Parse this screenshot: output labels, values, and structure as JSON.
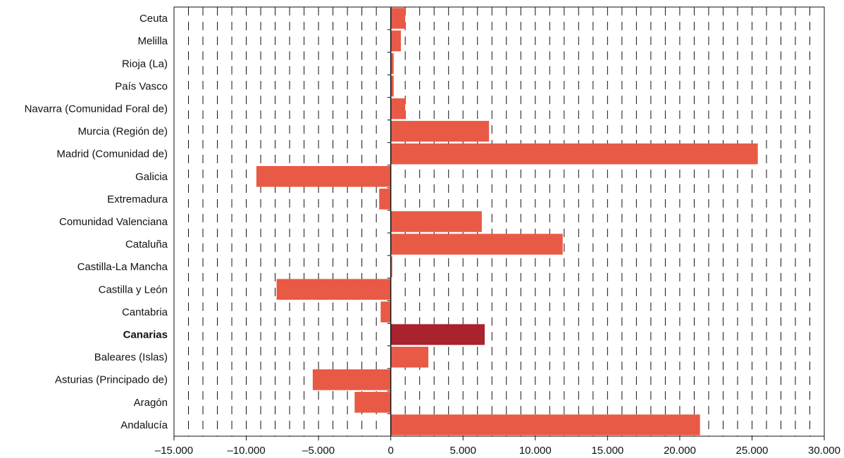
{
  "chart_data": {
    "type": "bar",
    "orientation": "horizontal",
    "categories": [
      "Ceuta",
      "Melilla",
      "Rioja (La)",
      "País Vasco",
      "Navarra (Comunidad Foral de)",
      "Murcia (Región de)",
      "Madrid (Comunidad de)",
      "Galicia",
      "Extremadura",
      "Comunidad  Valenciana",
      "Cataluña",
      "Castilla-La Mancha",
      "Castilla y León",
      "Cantabria",
      "Canarias",
      "Baleares (Islas)",
      "Asturias (Principado de)",
      "Aragón",
      "Andalucía"
    ],
    "values": [
      1000,
      700,
      200,
      200,
      1000,
      6800,
      25400,
      -9300,
      -800,
      6300,
      11900,
      100,
      -7900,
      -700,
      6500,
      2600,
      -5400,
      -2500,
      21400
    ],
    "highlight": "Canarias",
    "xlim": [
      -15000,
      30000
    ],
    "ticks": [
      -15000,
      -10000,
      -5000,
      0,
      5000,
      10000,
      15000,
      20000,
      25000,
      30000
    ],
    "tick_labels": [
      "–15.000",
      "–10.000",
      "–5.000",
      "0",
      "5.000",
      "10.000",
      "15.000",
      "20.000",
      "25.000",
      "30.000"
    ],
    "minor_gridline_step": 1000,
    "grid": "vertical dashed",
    "legend": "none",
    "title": "",
    "xlabel": "",
    "ylabel": ""
  },
  "colors": {
    "bar": "#e85a45",
    "highlight_bar": "#a8232d",
    "axis": "#111111",
    "grid": "#111111",
    "background": "#ffffff"
  }
}
